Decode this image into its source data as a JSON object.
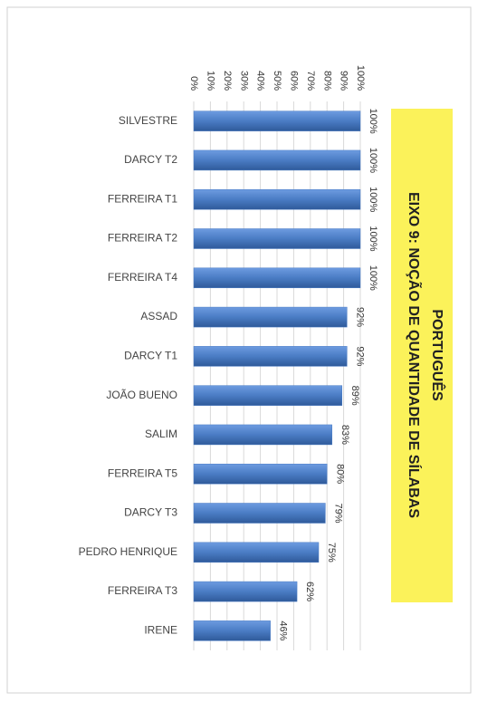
{
  "chart_data": {
    "type": "bar",
    "orientation": "horizontal",
    "title": "PORTUGUÊS",
    "subtitle": "EIXO 9: NOÇÃO DE QUANTIDADE DE SÍLABAS",
    "categories": [
      "SILVESTRE",
      "DARCY T2",
      "FERREIRA T1",
      "FERREIRA T2",
      "FERREIRA T4",
      "ASSAD",
      "DARCY T1",
      "JOÃO BUENO",
      "SALIM",
      "FERREIRA T5",
      "DARCY T3",
      "PEDRO HENRIQUE",
      "FERREIRA T3",
      "IRENE"
    ],
    "values": [
      100,
      100,
      100,
      100,
      100,
      92,
      92,
      89,
      83,
      80,
      79,
      75,
      62,
      46
    ],
    "value_labels": [
      "100%",
      "100%",
      "100%",
      "100%",
      "100%",
      "92%",
      "92%",
      "89%",
      "83%",
      "80%",
      "79%",
      "75%",
      "62%",
      "46%"
    ],
    "color": "#4a7cc4",
    "xlim": [
      0,
      100
    ],
    "xticks": [
      {
        "value": 0,
        "label": "0%"
      },
      {
        "value": 10,
        "label": "10%"
      },
      {
        "value": 20,
        "label": "20%"
      },
      {
        "value": 30,
        "label": "30%"
      },
      {
        "value": 40,
        "label": "40%"
      },
      {
        "value": 50,
        "label": "50%"
      },
      {
        "value": 60,
        "label": "60%"
      },
      {
        "value": 70,
        "label": "70%"
      },
      {
        "value": 80,
        "label": "80%"
      },
      {
        "value": 90,
        "label": "90%"
      },
      {
        "value": 100,
        "label": "100%"
      }
    ],
    "grid": true
  }
}
